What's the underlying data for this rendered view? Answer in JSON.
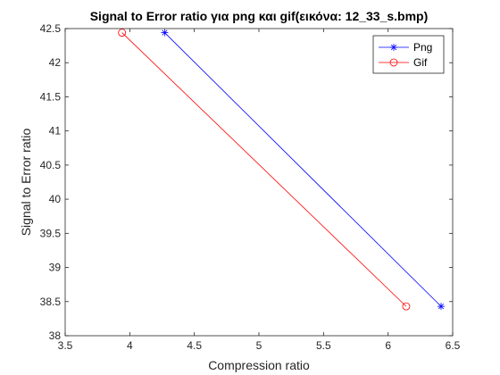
{
  "chart_data": {
    "type": "line",
    "title": "Signal to Error ratio για png και gif(εικόνα: 12_33_s.bmp)",
    "xlabel": "Compression ratio",
    "ylabel": "Signal to Error ratio",
    "xlim": [
      3.5,
      6.5
    ],
    "ylim": [
      38,
      42.5
    ],
    "xticks": [
      3.5,
      4,
      4.5,
      5,
      5.5,
      6,
      6.5
    ],
    "xtick_labels": [
      "3.5",
      "4",
      "4.5",
      "5",
      "5.5",
      "6",
      "6.5"
    ],
    "yticks": [
      38,
      38.5,
      39,
      39.5,
      40,
      40.5,
      41,
      41.5,
      42,
      42.5
    ],
    "ytick_labels": [
      "38",
      "38.5",
      "39",
      "39.5",
      "40",
      "40.5",
      "41",
      "41.5",
      "42",
      "42.5"
    ],
    "grid": false,
    "legend_position": "top-right",
    "series": [
      {
        "name": "Png",
        "color": "#0000ff",
        "marker": "asterisk",
        "x": [
          4.27,
          6.41
        ],
        "y": [
          42.44,
          38.43
        ]
      },
      {
        "name": "Gif",
        "color": "#ff0000",
        "marker": "circle",
        "x": [
          3.94,
          6.14
        ],
        "y": [
          42.44,
          38.43
        ]
      }
    ]
  }
}
